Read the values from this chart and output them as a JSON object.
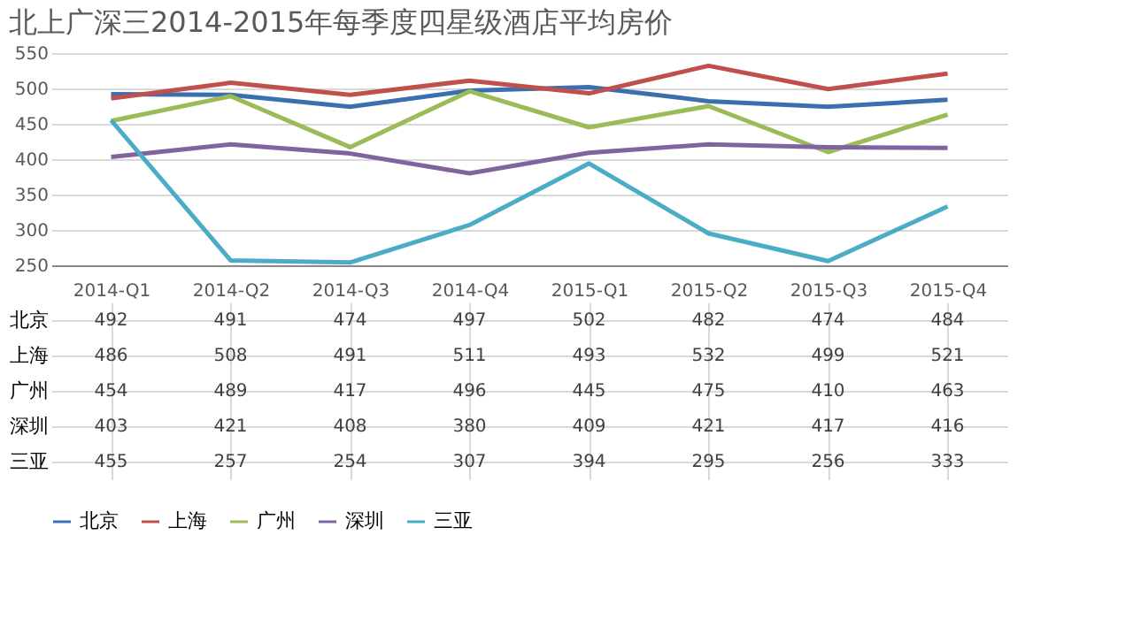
{
  "chart_data": {
    "type": "line",
    "title": "北上广深三2014-2015年每季度四星级酒店平均房价",
    "categories": [
      "2014-Q1",
      "2014-Q2",
      "2014-Q3",
      "2014-Q4",
      "2015-Q1",
      "2015-Q2",
      "2015-Q3",
      "2015-Q4"
    ],
    "series": [
      {
        "name": "北京",
        "color": "#3a6fb0",
        "values": [
          492,
          491,
          474,
          497,
          502,
          482,
          474,
          484
        ]
      },
      {
        "name": "上海",
        "color": "#c0504d",
        "values": [
          486,
          508,
          491,
          511,
          493,
          532,
          499,
          521
        ]
      },
      {
        "name": "广州",
        "color": "#9bbb59",
        "values": [
          454,
          489,
          417,
          496,
          445,
          475,
          410,
          463
        ]
      },
      {
        "name": "深圳",
        "color": "#8064a2",
        "values": [
          403,
          421,
          408,
          380,
          409,
          421,
          417,
          416
        ]
      },
      {
        "name": "三亚",
        "color": "#4bacc6",
        "values": [
          455,
          257,
          254,
          307,
          394,
          295,
          256,
          333
        ]
      }
    ],
    "ylim": [
      250,
      550
    ],
    "yticks": [
      250,
      300,
      350,
      400,
      450,
      500,
      550
    ],
    "grid": "y",
    "legend": "bottom",
    "data_labels": true,
    "marker": "none",
    "line_style": "solid"
  }
}
